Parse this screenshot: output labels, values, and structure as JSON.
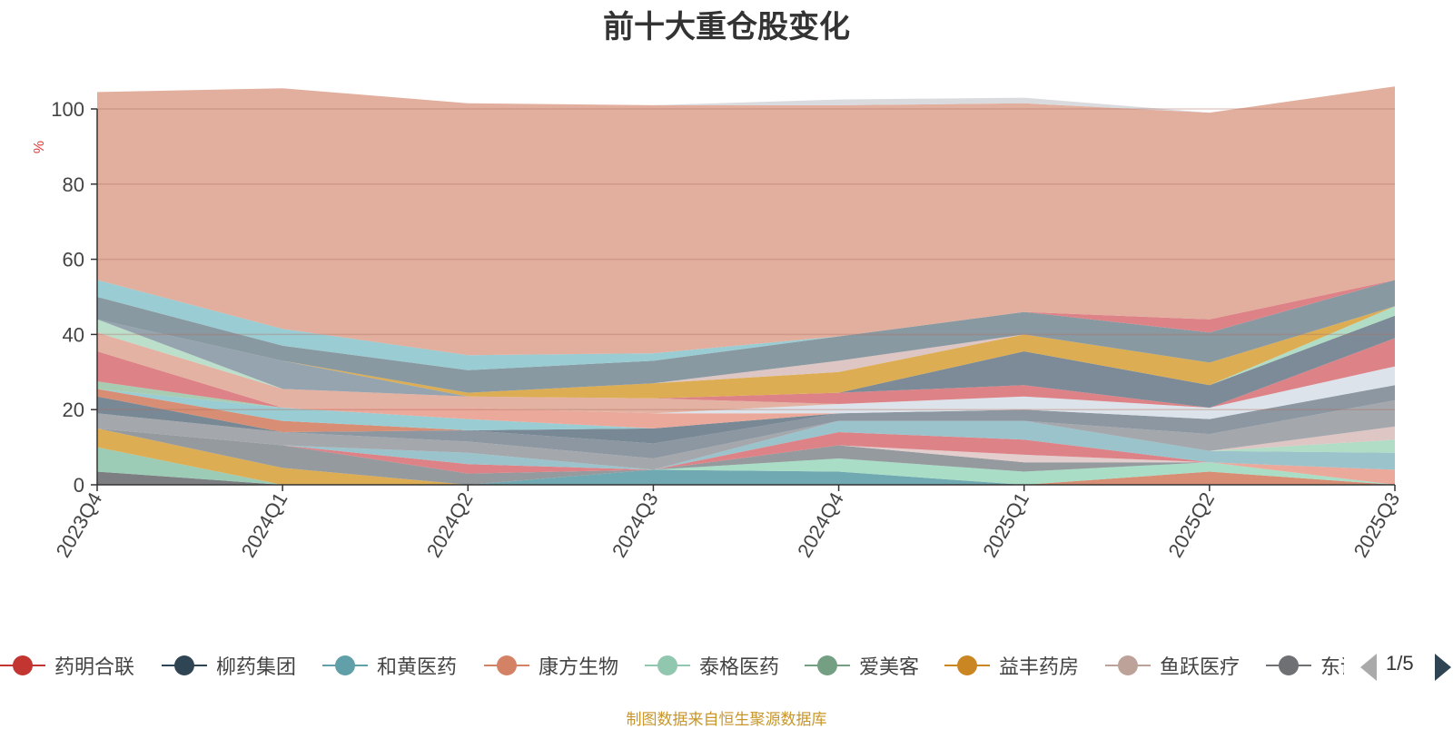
{
  "chart_data": {
    "type": "area",
    "title": "前十大重仓股变化",
    "ylabel": "%",
    "xlabel": "",
    "ylim": [
      0,
      100
    ],
    "y_ticks": [
      "0",
      "20",
      "40",
      "60",
      "80",
      "100"
    ],
    "x": [
      "2023Q4",
      "2024Q1",
      "2024Q2",
      "2024Q3",
      "2024Q4",
      "2025Q1",
      "2025Q2",
      "2025Q3"
    ],
    "stacked": true,
    "grid": true,
    "legend_position": "bottom",
    "series": [
      {
        "name": "",
        "color": "#6e7074",
        "values": [
          3.5,
          0,
          0,
          0,
          0,
          0,
          0,
          0
        ]
      },
      {
        "name": "",
        "color": "#91c7ae",
        "values": [
          6.5,
          0,
          0,
          0,
          0,
          0,
          0,
          0
        ]
      },
      {
        "name": "益丰药房",
        "color": "#d9a441",
        "values": [
          5,
          4.5,
          0,
          0,
          0,
          0,
          0,
          0
        ]
      },
      {
        "name": "",
        "color": "#61a0a8",
        "values": [
          0,
          0,
          0,
          4,
          3.5,
          0,
          0,
          0
        ]
      },
      {
        "name": "",
        "color": "#d48265",
        "values": [
          0,
          0,
          0,
          0,
          0,
          0,
          3.5,
          0
        ]
      },
      {
        "name": "",
        "color": "#a0d9c0",
        "values": [
          0,
          0,
          0,
          0,
          3.5,
          3.5,
          2.5,
          0
        ]
      },
      {
        "name": "",
        "color": "#e8a090",
        "values": [
          0,
          0,
          0,
          0,
          0,
          0,
          0,
          4
        ]
      },
      {
        "name": "",
        "color": "#8a8f94",
        "values": [
          0,
          6,
          3,
          0,
          3.5,
          2.5,
          0,
          0
        ]
      },
      {
        "name": "",
        "color": "#e0c8c8",
        "values": [
          0,
          0,
          0,
          0,
          0,
          2,
          0,
          0
        ]
      },
      {
        "name": "",
        "color": "#d9747a",
        "values": [
          0,
          0,
          2.5,
          0,
          3.5,
          4,
          0,
          0
        ]
      },
      {
        "name": "",
        "color": "#8fbcc5",
        "values": [
          0,
          0,
          3,
          0,
          3,
          5,
          3,
          4.5
        ]
      },
      {
        "name": "",
        "color": "#a8d8c0",
        "values": [
          0,
          0,
          0,
          0,
          0,
          0,
          0,
          3.5
        ]
      },
      {
        "name": "",
        "color": "#d9c0bc",
        "values": [
          0,
          0,
          0,
          0,
          0,
          0,
          0,
          3.5
        ]
      },
      {
        "name": "",
        "color": "#9a9ea4",
        "values": [
          4,
          3.5,
          3,
          3,
          0,
          0,
          4.5,
          7
        ]
      },
      {
        "name": "",
        "color": "#7f8c98",
        "values": [
          0,
          0,
          3,
          4,
          2,
          3,
          4,
          4
        ]
      },
      {
        "name": "",
        "color": "#6a7b8a",
        "values": [
          4.5,
          0,
          0,
          4,
          0,
          0,
          0,
          0
        ]
      },
      {
        "name": "",
        "color": "#d48265",
        "values": [
          2,
          3,
          0,
          0,
          0,
          0,
          0,
          0
        ]
      },
      {
        "name": "",
        "color": "#8fc7ce",
        "values": [
          0,
          3.5,
          3,
          0,
          0,
          0,
          0,
          0
        ]
      },
      {
        "name": "",
        "color": "#e8a090",
        "values": [
          0,
          0,
          3,
          4,
          0,
          0,
          0,
          0
        ]
      },
      {
        "name": "",
        "color": "#d9e0e8",
        "values": [
          0,
          0,
          0,
          0,
          2.5,
          3.5,
          3,
          5
        ]
      },
      {
        "name": "",
        "color": "#9ec7a8",
        "values": [
          2,
          0,
          0,
          0,
          0,
          0,
          0,
          0
        ]
      },
      {
        "name": "",
        "color": "#d9747a",
        "values": [
          8,
          0,
          0,
          0,
          0,
          0,
          0,
          0
        ]
      },
      {
        "name": "",
        "color": "#e0aa98",
        "values": [
          5,
          5,
          3,
          4,
          0,
          0,
          0,
          0
        ]
      },
      {
        "name": "",
        "color": "#b5dcc5",
        "values": [
          3.5,
          0,
          0,
          0,
          0,
          0,
          0,
          0
        ]
      },
      {
        "name": "",
        "color": "#d9747a",
        "values": [
          0,
          0,
          0,
          0,
          3,
          3,
          0,
          7.5
        ]
      },
      {
        "name": "",
        "color": "#8a9aa5",
        "values": [
          0,
          7.5,
          0,
          0,
          0,
          0,
          0,
          0
        ]
      },
      {
        "name": "",
        "color": "#6e7e8c",
        "values": [
          0,
          0,
          0,
          0,
          0,
          9,
          6,
          6
        ]
      },
      {
        "name": "",
        "color": "#a8d8c0",
        "values": [
          0,
          0,
          0,
          0,
          0,
          0,
          0,
          2.5
        ]
      },
      {
        "name": "",
        "color": "#d9a441",
        "values": [
          0,
          0,
          1,
          4,
          5.5,
          4.5,
          6,
          0
        ]
      },
      {
        "name": "",
        "color": "#d9c0bc",
        "values": [
          0,
          0,
          0,
          0,
          3,
          0,
          0,
          0
        ]
      },
      {
        "name": "",
        "color": "#7c8e98",
        "values": [
          6,
          4,
          6,
          6,
          6.5,
          6,
          8,
          7
        ]
      },
      {
        "name": "",
        "color": "#d9747a",
        "values": [
          0,
          0,
          0,
          0,
          0,
          0,
          3.5,
          0
        ]
      },
      {
        "name": "",
        "color": "#8fc7ce",
        "values": [
          4.5,
          4.5,
          4,
          2,
          0,
          0,
          0,
          0
        ]
      },
      {
        "name": "",
        "color": "#dfa592",
        "values": [
          50,
          64,
          67,
          66,
          61.5,
          55.5,
          55,
          51.5
        ]
      },
      {
        "name": "",
        "color": "#d5d7db",
        "values": [
          0,
          0,
          0,
          0,
          1.5,
          1.5,
          0,
          0
        ]
      }
    ]
  },
  "legend": {
    "items": [
      {
        "label": "药明合联",
        "color": "#c23531"
      },
      {
        "label": "柳药集团",
        "color": "#2f4554"
      },
      {
        "label": "和黄医药",
        "color": "#61a0a8"
      },
      {
        "label": "康方生物",
        "color": "#d48265"
      },
      {
        "label": "泰格医药",
        "color": "#91c7ae"
      },
      {
        "label": "爱美客",
        "color": "#749f83"
      },
      {
        "label": "益丰药房",
        "color": "#ca8622"
      },
      {
        "label": "鱼跃医疗",
        "color": "#bda29a"
      },
      {
        "label": "东诚药业",
        "color": "#6e7074"
      }
    ],
    "pager": "1/5"
  },
  "source": "制图数据来自恒生聚源数据库"
}
